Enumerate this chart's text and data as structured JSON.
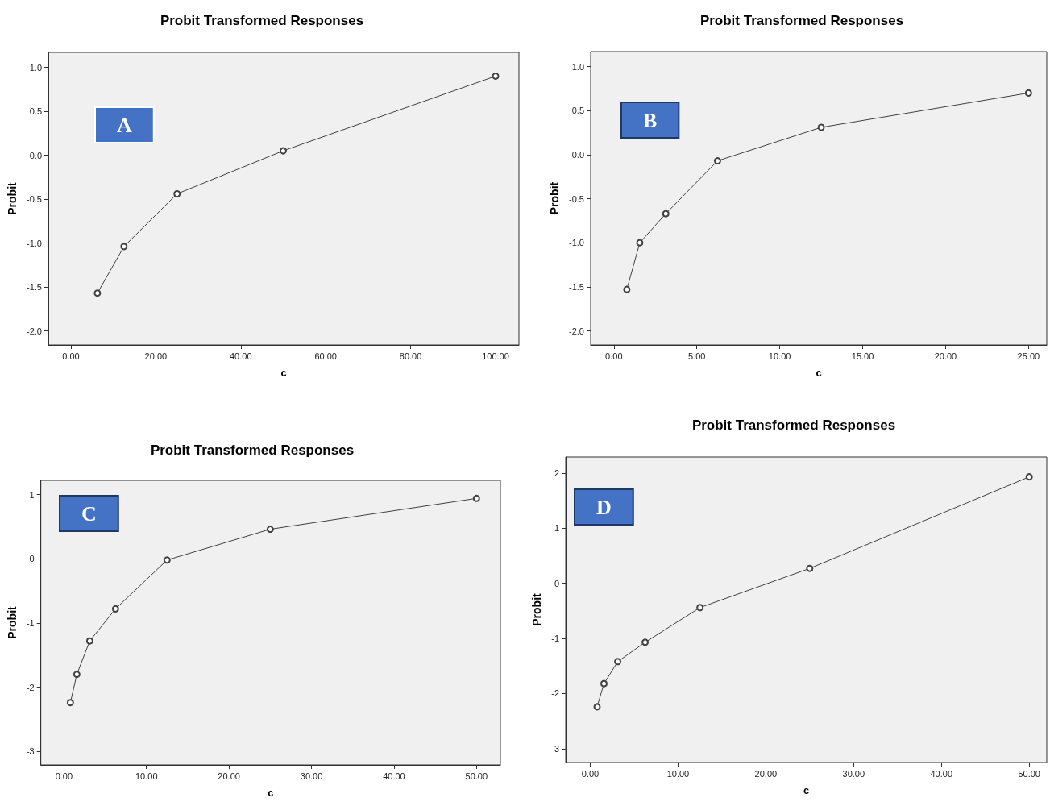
{
  "chart_data": [
    {
      "type": "line",
      "title": "Probit Transformed Responses",
      "xlabel": "c",
      "ylabel": "Probit",
      "annotations": [
        "A"
      ],
      "marker": "circle",
      "line_style": "solid",
      "grid": false,
      "series": [
        {
          "color": "#404040",
          "x": [
            6.25,
            12.5,
            25,
            50,
            100
          ],
          "values": [
            -1.57,
            -1.04,
            -0.44,
            0.05,
            0.9
          ]
        }
      ],
      "xlim": [
        -5.3,
        105.5
      ],
      "ylim": [
        -2.16,
        1.17
      ],
      "xticks": [
        {
          "value": 0,
          "label": "0.00"
        },
        {
          "value": 20,
          "label": "20.00"
        },
        {
          "value": 40,
          "label": "40.00"
        },
        {
          "value": 60,
          "label": "60.00"
        },
        {
          "value": 80,
          "label": "80.00"
        },
        {
          "value": 100,
          "label": "100.00"
        }
      ],
      "yticks": [
        {
          "value": -2,
          "label": "-2.0"
        },
        {
          "value": -1.5,
          "label": "-1.5"
        },
        {
          "value": -1,
          "label": "-1.0"
        },
        {
          "value": -0.5,
          "label": "-0.5"
        },
        {
          "value": 0,
          "label": "0.0"
        },
        {
          "value": 0.5,
          "label": "0.5"
        },
        {
          "value": 1,
          "label": "1.0"
        }
      ]
    },
    {
      "type": "line",
      "title": "Probit Transformed Responses",
      "xlabel": "c",
      "ylabel": "Probit",
      "annotations": [
        "B"
      ],
      "marker": "circle",
      "line_style": "solid",
      "grid": false,
      "series": [
        {
          "color": "#404040",
          "x": [
            0.78,
            1.56,
            3.13,
            6.25,
            12.5,
            25
          ],
          "values": [
            -1.53,
            -1.0,
            -0.67,
            -0.07,
            0.31,
            0.7
          ]
        }
      ],
      "xlim": [
        -1.4,
        26.1
      ],
      "ylim": [
        -2.16,
        1.17
      ],
      "xticks": [
        {
          "value": 0,
          "label": "0.00"
        },
        {
          "value": 5,
          "label": "5.00"
        },
        {
          "value": 10,
          "label": "10.00"
        },
        {
          "value": 15,
          "label": "15.00"
        },
        {
          "value": 20,
          "label": "20.00"
        },
        {
          "value": 25,
          "label": "25.00"
        }
      ],
      "yticks": [
        {
          "value": -2,
          "label": "-2.0"
        },
        {
          "value": -1.5,
          "label": "-1.5"
        },
        {
          "value": -1,
          "label": "-1.0"
        },
        {
          "value": -0.5,
          "label": "-0.5"
        },
        {
          "value": 0,
          "label": "0.0"
        },
        {
          "value": 0.5,
          "label": "0.5"
        },
        {
          "value": 1,
          "label": "1.0"
        }
      ]
    },
    {
      "type": "line",
      "title": "Probit Transformed Responses",
      "xlabel": "c",
      "ylabel": "Probit",
      "annotations": [
        "C"
      ],
      "marker": "circle",
      "line_style": "solid",
      "grid": false,
      "series": [
        {
          "color": "#404040",
          "x": [
            0.78,
            1.56,
            3.13,
            6.25,
            12.5,
            25,
            50
          ],
          "values": [
            -2.24,
            -1.8,
            -1.28,
            -0.78,
            -0.02,
            0.46,
            0.94
          ]
        }
      ],
      "xlim": [
        -2.8,
        52.9
      ],
      "ylim": [
        -3.21,
        1.22
      ],
      "xticks": [
        {
          "value": 0,
          "label": "0.00"
        },
        {
          "value": 10,
          "label": "10.00"
        },
        {
          "value": 20,
          "label": "20.00"
        },
        {
          "value": 30,
          "label": "30.00"
        },
        {
          "value": 40,
          "label": "40.00"
        },
        {
          "value": 50,
          "label": "50.00"
        }
      ],
      "yticks": [
        -3,
        -2,
        -1,
        0,
        1
      ]
    },
    {
      "type": "line",
      "title": "Probit Transformed Responses",
      "xlabel": "c",
      "ylabel": "Probit",
      "annotations": [
        "D"
      ],
      "marker": "circle",
      "line_style": "solid",
      "grid": false,
      "series": [
        {
          "color": "#404040",
          "x": [
            0.78,
            1.56,
            3.13,
            6.25,
            12.5,
            25,
            50
          ],
          "values": [
            -2.24,
            -1.82,
            -1.42,
            -1.07,
            -0.44,
            0.27,
            1.93
          ]
        }
      ],
      "xlim": [
        -2.8,
        52.0
      ],
      "ylim": [
        -3.25,
        2.29
      ],
      "xticks": [
        {
          "value": 0,
          "label": "0.00"
        },
        {
          "value": 10,
          "label": "10.00"
        },
        {
          "value": 20,
          "label": "20.00"
        },
        {
          "value": 30,
          "label": "30.00"
        },
        {
          "value": 40,
          "label": "40.00"
        },
        {
          "value": 50,
          "label": "50.00"
        }
      ],
      "yticks": [
        -3,
        -2,
        -1,
        0,
        1,
        2
      ]
    }
  ]
}
